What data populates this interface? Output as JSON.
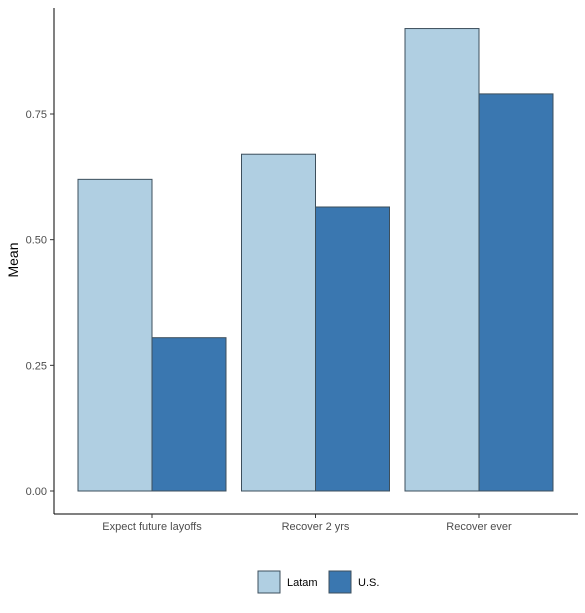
{
  "chart_data": {
    "type": "bar",
    "title": "",
    "xlabel": "",
    "ylabel": "Mean",
    "categories": [
      "Expect future layoffs",
      "Recover 2 yrs",
      "Recover ever"
    ],
    "series": [
      {
        "name": "Latam",
        "values": [
          0.62,
          0.67,
          0.92
        ],
        "color": "#b0cfe2"
      },
      {
        "name": "U.S.",
        "values": [
          0.305,
          0.565,
          0.79
        ],
        "color": "#3a77b0"
      }
    ],
    "ylim": [
      0,
      0.95
    ],
    "yticks": [
      0,
      0.25,
      0.5,
      0.75
    ],
    "ytick_labels": [
      "0.00",
      "0.25",
      "0.50",
      "0.75"
    ],
    "grid": false,
    "legend_position": "bottom",
    "bar_outline_color": "#3d4f5c"
  }
}
